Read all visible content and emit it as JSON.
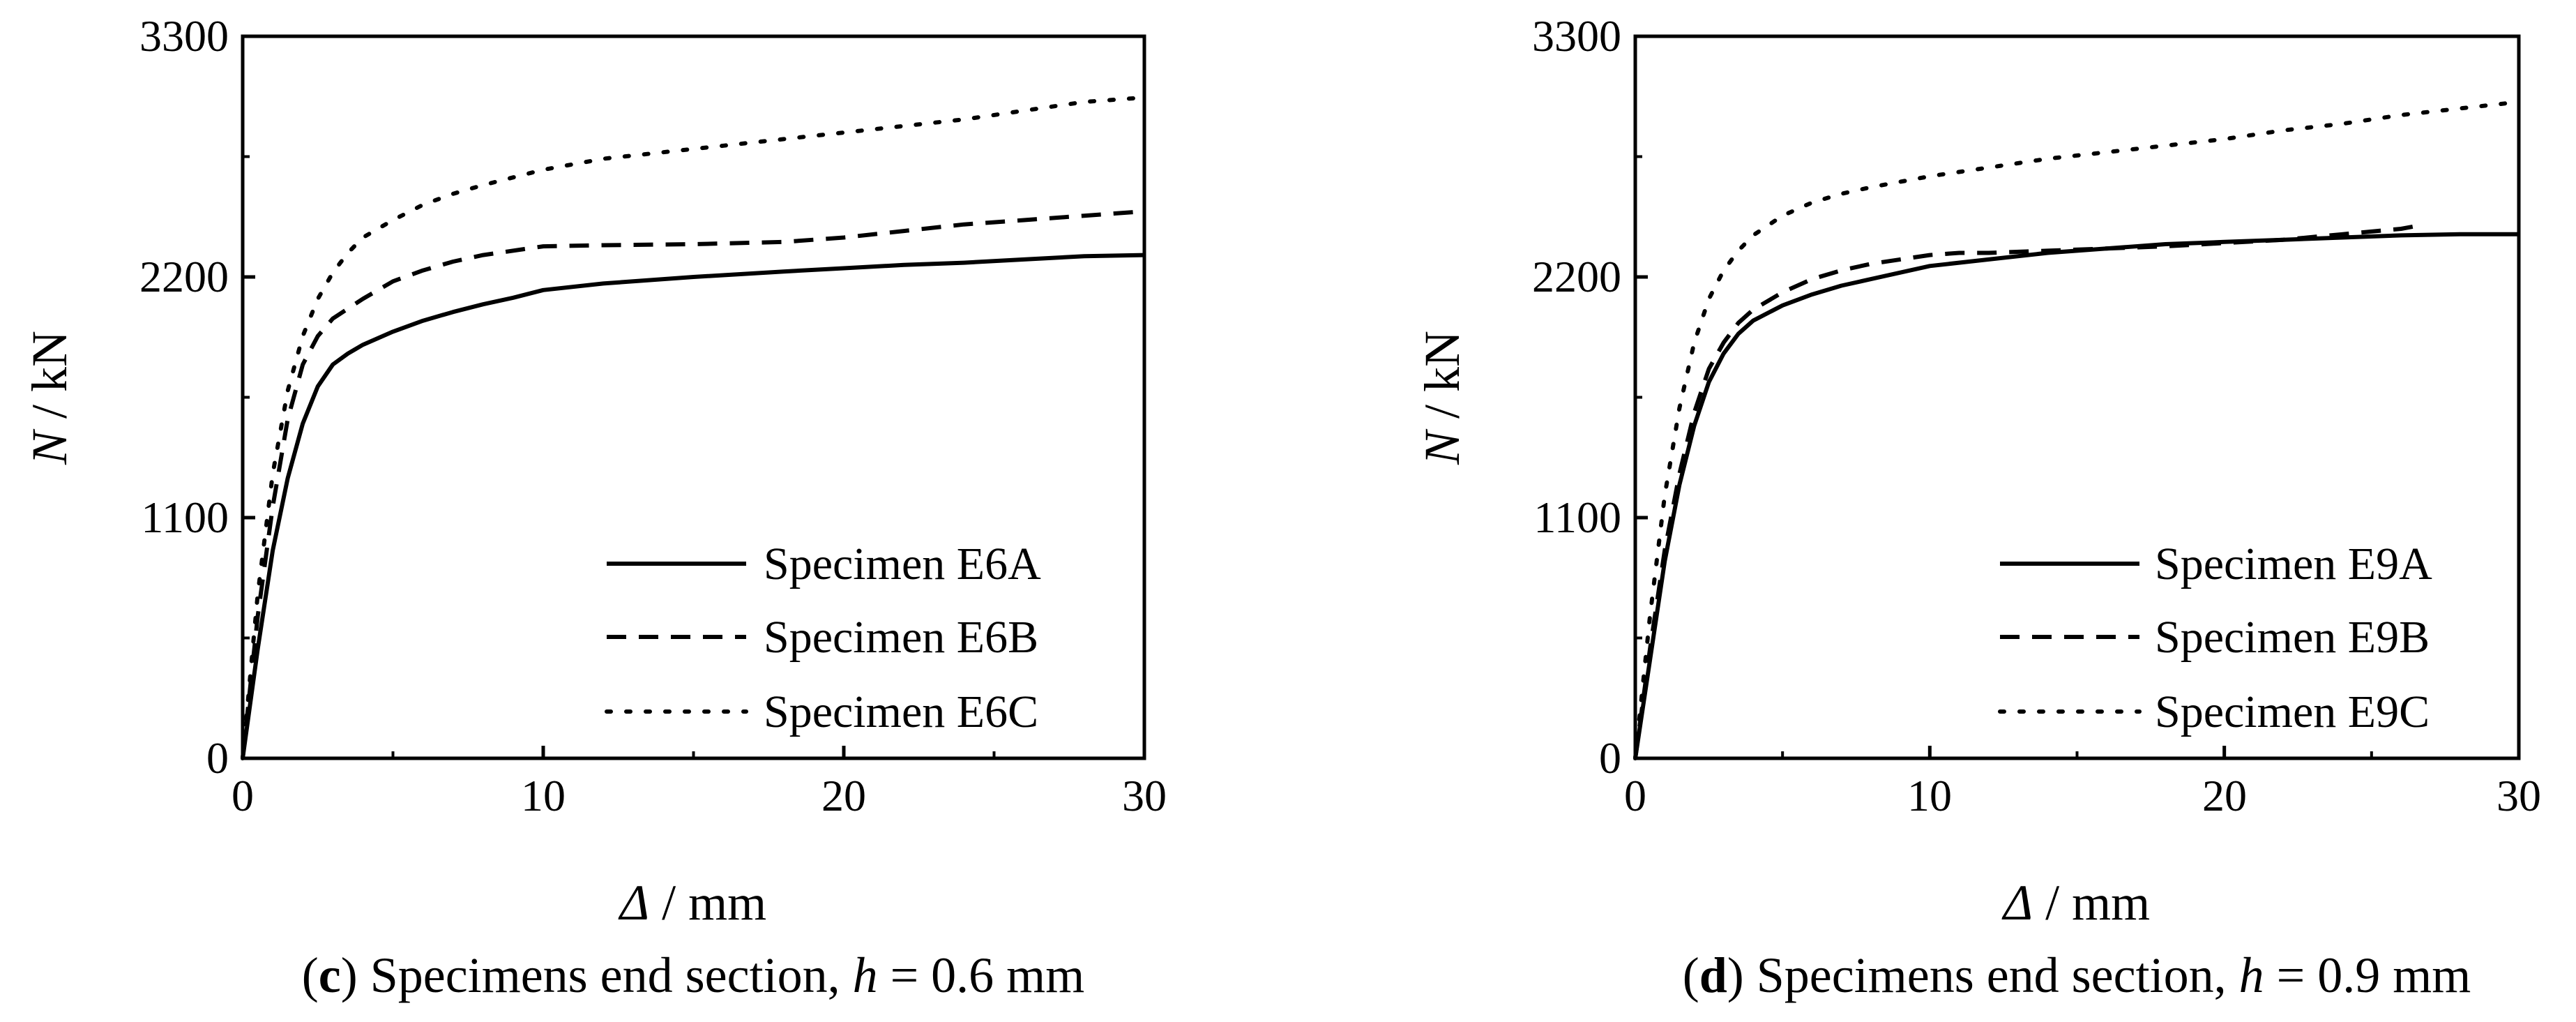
{
  "chart_data": [
    {
      "type": "line",
      "panel_label": "c",
      "caption": "Specimens end section, ",
      "caption_var": "h",
      "caption_value": " = 0.6 mm",
      "xlabel_var": "Δ",
      "xlabel_unit": " / mm",
      "ylabel_var": "N",
      "ylabel_unit": " / kN",
      "xlim": [
        0,
        30
      ],
      "ylim": [
        0,
        3300
      ],
      "xticks": [
        0,
        10,
        20,
        30
      ],
      "yticks": [
        0,
        1100,
        2200,
        3300
      ],
      "legend_position": "lower-right",
      "series": [
        {
          "name": "Specimen E6A",
          "style": "solid",
          "x": [
            0,
            0.5,
            1,
            1.5,
            2,
            2.5,
            3,
            3.5,
            4,
            5,
            6,
            7,
            8,
            9,
            10,
            12,
            15,
            18,
            20,
            22,
            24,
            26,
            28,
            30
          ],
          "y": [
            0,
            500,
            950,
            1280,
            1530,
            1700,
            1800,
            1850,
            1890,
            1950,
            2000,
            2040,
            2075,
            2105,
            2140,
            2170,
            2200,
            2225,
            2240,
            2255,
            2265,
            2280,
            2295,
            2300
          ]
        },
        {
          "name": "Specimen E6B",
          "style": "dashed",
          "x": [
            0,
            0.5,
            1,
            1.5,
            2,
            2.5,
            3,
            4,
            5,
            6,
            7,
            8,
            10,
            12,
            15,
            18,
            20,
            22,
            24,
            26,
            28,
            30
          ],
          "y": [
            0,
            650,
            1150,
            1550,
            1800,
            1930,
            2010,
            2100,
            2180,
            2230,
            2270,
            2300,
            2340,
            2345,
            2350,
            2360,
            2380,
            2410,
            2440,
            2460,
            2480,
            2500
          ]
        },
        {
          "name": "Specimen E6C",
          "style": "dotted",
          "x": [
            0,
            0.5,
            1,
            1.5,
            2,
            2.5,
            3,
            3.5,
            4,
            5,
            6,
            7,
            8,
            10,
            12,
            14,
            16,
            18,
            20,
            22,
            24,
            26,
            28,
            30
          ],
          "y": [
            0,
            750,
            1300,
            1680,
            1930,
            2100,
            2220,
            2310,
            2380,
            2460,
            2530,
            2580,
            2620,
            2690,
            2740,
            2770,
            2800,
            2830,
            2860,
            2890,
            2920,
            2960,
            3000,
            3020
          ]
        }
      ]
    },
    {
      "type": "line",
      "panel_label": "d",
      "caption": "Specimens end section, ",
      "caption_var": "h",
      "caption_value": " = 0.9 mm",
      "xlabel_var": "Δ",
      "xlabel_unit": " / mm",
      "ylabel_var": "N",
      "ylabel_unit": " / kN",
      "xlim": [
        0,
        30
      ],
      "ylim": [
        0,
        3300
      ],
      "xticks": [
        0,
        10,
        20,
        30
      ],
      "yticks": [
        0,
        1100,
        2200,
        3300
      ],
      "legend_position": "lower-right",
      "series": [
        {
          "name": "Specimen E9A",
          "style": "solid",
          "x": [
            0,
            0.5,
            1,
            1.5,
            2,
            2.5,
            3,
            3.5,
            4,
            5,
            6,
            7,
            8,
            10,
            12,
            14,
            16,
            18,
            20,
            22,
            24,
            26,
            28,
            30
          ],
          "y": [
            0,
            450,
            900,
            1250,
            1520,
            1720,
            1850,
            1940,
            2000,
            2070,
            2120,
            2160,
            2190,
            2250,
            2280,
            2310,
            2330,
            2350,
            2360,
            2370,
            2380,
            2390,
            2395,
            2395
          ]
        },
        {
          "name": "Specimen E9B",
          "style": "dashed",
          "x": [
            0,
            0.5,
            1,
            1.5,
            2,
            2.5,
            3,
            3.5,
            4,
            5,
            6,
            7,
            8,
            10,
            11,
            12,
            14,
            16,
            18,
            20,
            22,
            24,
            26,
            26.8
          ],
          "y": [
            0,
            500,
            950,
            1300,
            1580,
            1780,
            1900,
            1990,
            2050,
            2130,
            2190,
            2230,
            2260,
            2300,
            2310,
            2310,
            2320,
            2330,
            2340,
            2355,
            2370,
            2395,
            2420,
            2440
          ]
        },
        {
          "name": "Specimen E9C",
          "style": "dotted",
          "x": [
            0,
            0.5,
            1,
            1.5,
            2,
            2.5,
            3,
            3.5,
            4,
            5,
            6,
            7,
            8,
            10,
            12,
            14,
            16,
            18,
            20,
            22,
            24,
            26,
            28,
            30
          ],
          "y": [
            0,
            650,
            1200,
            1600,
            1900,
            2100,
            2230,
            2320,
            2390,
            2480,
            2540,
            2580,
            2610,
            2660,
            2700,
            2740,
            2770,
            2800,
            2830,
            2870,
            2900,
            2940,
            2970,
            3000
          ]
        }
      ]
    }
  ]
}
